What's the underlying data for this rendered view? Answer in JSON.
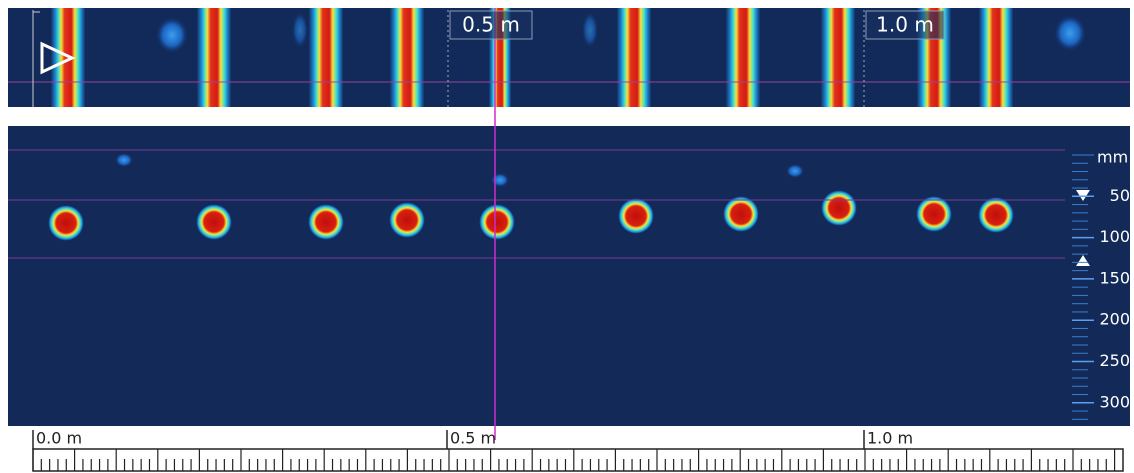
{
  "top_panel": {
    "distance_labels": [
      "0.5 m",
      "1.0 m"
    ]
  },
  "depth_scale": {
    "unit": "mm",
    "ticks": [
      50,
      100,
      150,
      200,
      250,
      300
    ]
  },
  "ruler": {
    "labels": [
      "0.0 m",
      "0.5 m",
      "1.0 m"
    ]
  }
}
